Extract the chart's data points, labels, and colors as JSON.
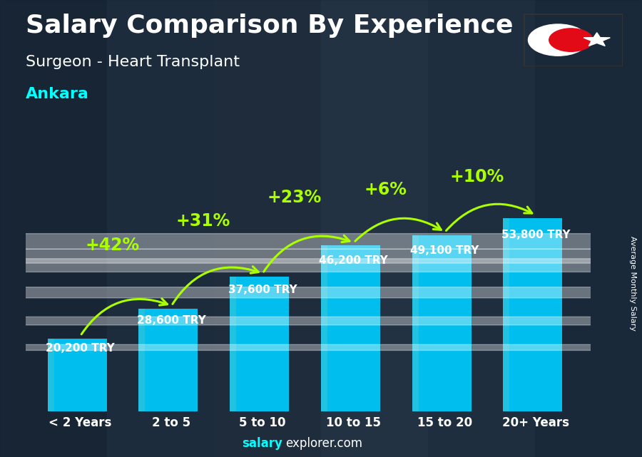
{
  "title": "Salary Comparison By Experience",
  "subtitle": "Surgeon - Heart Transplant",
  "city": "Ankara",
  "ylabel": "Average Monthly Salary",
  "footer_bold": "salary",
  "footer_normal": "explorer.com",
  "categories": [
    "< 2 Years",
    "2 to 5",
    "5 to 10",
    "10 to 15",
    "15 to 20",
    "20+ Years"
  ],
  "values": [
    20200,
    28600,
    37600,
    46200,
    49100,
    53800
  ],
  "value_labels": [
    "20,200 TRY",
    "28,600 TRY",
    "37,600 TRY",
    "46,200 TRY",
    "49,100 TRY",
    "53,800 TRY"
  ],
  "pct_labels": [
    "+42%",
    "+31%",
    "+23%",
    "+6%",
    "+10%"
  ],
  "bar_color_main": "#00BFEE",
  "bar_color_light": "#22DDFF",
  "bar_color_dark": "#0090CC",
  "title_color": "#FFFFFF",
  "subtitle_color": "#FFFFFF",
  "city_color": "#00FFFF",
  "value_label_color": "#FFFFFF",
  "pct_color": "#AAFF00",
  "arrow_color": "#AAFF00",
  "footer_bold_color": "#00FFFF",
  "footer_normal_color": "#FFFFFF",
  "bg_color": "#2a3a4a",
  "ylim": [
    0,
    70000
  ],
  "title_fontsize": 26,
  "subtitle_fontsize": 16,
  "city_fontsize": 16,
  "value_fontsize": 11,
  "pct_fontsize": 17,
  "cat_fontsize": 12
}
